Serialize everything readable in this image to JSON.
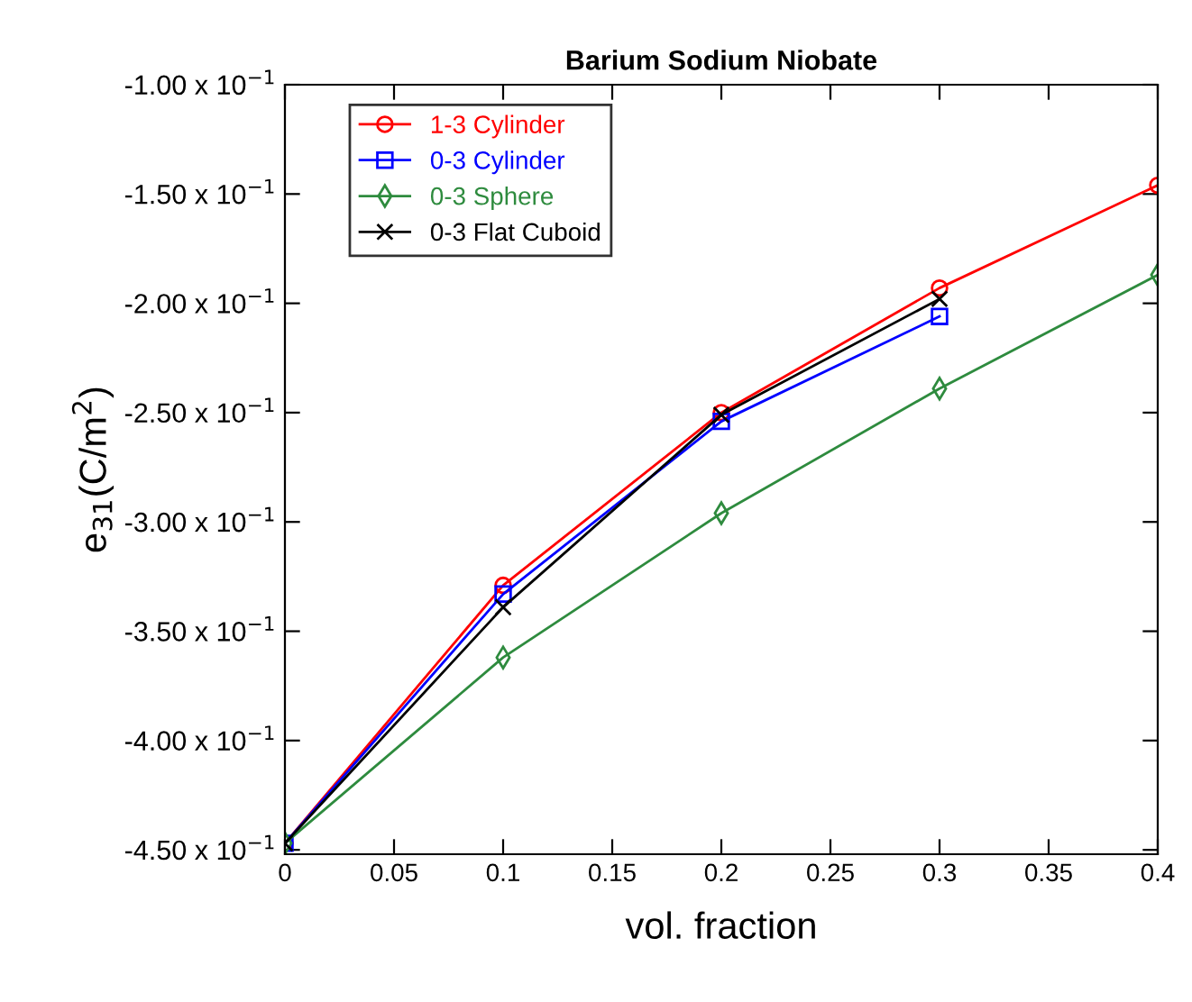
{
  "chart_data": {
    "type": "line",
    "title": "Barium Sodium Niobate",
    "xlabel": "vol. fraction",
    "ylabel": "e$_{31}$(C/m$^{2}$)",
    "xlim": [
      0,
      0.4
    ],
    "xticks": [
      0,
      0.05,
      0.1,
      0.15,
      0.2,
      0.25,
      0.3,
      0.35,
      0.4
    ],
    "ylim": [
      -0.452,
      -0.1
    ],
    "yticks": [
      {
        "value": -0.45,
        "label": "-4.50 x 10$^{−1}$"
      },
      {
        "value": -0.4,
        "label": "-4.00 x 10$^{−1}$"
      },
      {
        "value": -0.35,
        "label": "-3.50 x 10$^{−1}$"
      },
      {
        "value": -0.3,
        "label": "-3.00 x 10$^{−1}$"
      },
      {
        "value": -0.25,
        "label": "-2.50 x 10$^{−1}$"
      },
      {
        "value": -0.2,
        "label": "-2.00 x 10$^{−1}$"
      },
      {
        "value": -0.15,
        "label": "-1.50 x 10$^{−1}$"
      },
      {
        "value": -0.1,
        "label": "-1.00 x 10$^{−1}$"
      }
    ],
    "grid": false,
    "legend": "top left",
    "series": [
      {
        "name": "1-3 Cylinder",
        "color": "#ff0000",
        "marker": "circle",
        "x": [
          0,
          0.1,
          0.2,
          0.3,
          0.4
        ],
        "values": [
          -0.447,
          -0.329,
          -0.25,
          -0.193,
          -0.146
        ]
      },
      {
        "name": "0-3 Cylinder",
        "color": "#0000ff",
        "marker": "square",
        "x": [
          0,
          0.1,
          0.2,
          0.3
        ],
        "values": [
          -0.447,
          -0.333,
          -0.254,
          -0.206
        ]
      },
      {
        "name": "0-3 Sphere",
        "color": "#2e8b3e",
        "marker": "diamond",
        "x": [
          0,
          0.1,
          0.2,
          0.3,
          0.4
        ],
        "values": [
          -0.447,
          -0.362,
          -0.296,
          -0.239,
          -0.187
        ]
      },
      {
        "name": "0-3 Flat Cuboid",
        "color": "#000000",
        "marker": "cross",
        "x": [
          0,
          0.1,
          0.2,
          0.3
        ],
        "values": [
          -0.447,
          -0.339,
          -0.251,
          -0.198
        ]
      }
    ]
  }
}
